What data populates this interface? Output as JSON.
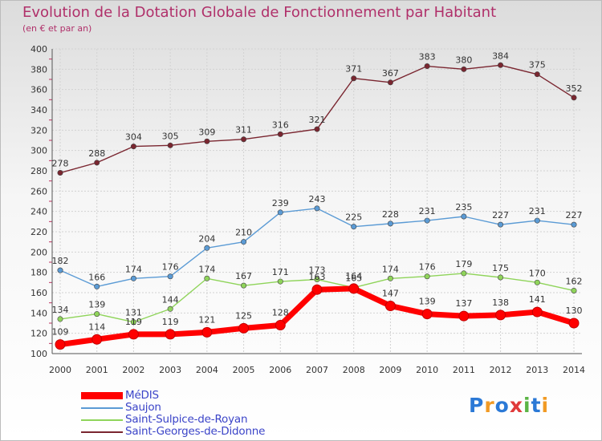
{
  "chart_data": {
    "type": "line",
    "title": "Evolution de la Dotation Globale de Fonctionnement par Habitant",
    "subtitle": "(en € et par an)",
    "xlabel": "",
    "ylabel": "",
    "x": [
      "2000",
      "2001",
      "2002",
      "2003",
      "2004",
      "2005",
      "2006",
      "2007",
      "2008",
      "2009",
      "2010",
      "2011",
      "2012",
      "2013",
      "2014"
    ],
    "ylim": [
      100,
      400
    ],
    "yticks": [
      100,
      120,
      140,
      160,
      180,
      200,
      220,
      240,
      260,
      280,
      300,
      320,
      340,
      360,
      380,
      400
    ],
    "grid": true,
    "legend_position": "bottom-left",
    "series": [
      {
        "name": "Saint-Georges-de-Didonne",
        "color": "#7a2630",
        "values": [
          278,
          288,
          304,
          305,
          309,
          311,
          316,
          321,
          371,
          367,
          383,
          380,
          384,
          375,
          352
        ]
      },
      {
        "name": "Saujon",
        "color": "#5b9bd5",
        "values": [
          182,
          166,
          174,
          176,
          204,
          210,
          239,
          243,
          225,
          228,
          231,
          235,
          227,
          231,
          227
        ]
      },
      {
        "name": "Saint-Sulpice-de-Royan",
        "color": "#8fd45a",
        "values": [
          134,
          139,
          131,
          144,
          174,
          167,
          171,
          173,
          165,
          174,
          176,
          179,
          175,
          170,
          162
        ]
      },
      {
        "name": "MéDIS",
        "color": "#ff0000",
        "values": [
          109,
          114,
          119,
          119,
          121,
          125,
          128,
          163,
          164,
          147,
          139,
          137,
          138,
          141,
          130
        ]
      }
    ],
    "legend": [
      "MéDIS",
      "Saujon",
      "Saint-Sulpice-de-Royan",
      "Saint-Georges-de-Didonne"
    ]
  },
  "logo": {
    "p": "P",
    "r": "r",
    "o": "o",
    "x": "x",
    "i": "i",
    "t": "t",
    "i2": "i"
  }
}
